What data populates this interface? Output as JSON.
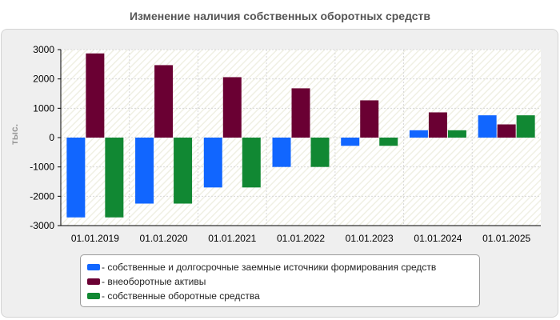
{
  "chart_data": {
    "type": "bar",
    "title": "Изменение наличия собственных оборотных средств",
    "ylabel": "тыс.",
    "xlabel": "",
    "ylim": [
      -3000,
      3000
    ],
    "yticks": [
      3000,
      2000,
      1000,
      0,
      -1000,
      -2000,
      -3000
    ],
    "grid": true,
    "legend_position": "bottom",
    "categories": [
      "01.01.2019",
      "01.01.2020",
      "01.01.2021",
      "01.01.2022",
      "01.01.2023",
      "01.01.2024",
      "01.01.2025"
    ],
    "series": [
      {
        "name": "собственные и долгосрочные заемные источники формирования средств",
        "color": "#1166ff",
        "values": [
          -2720,
          -2250,
          -1700,
          -1000,
          -280,
          250,
          760
        ]
      },
      {
        "name": "внеоборотные активы",
        "color": "#6a0033",
        "values": [
          2870,
          2470,
          2060,
          1680,
          1270,
          860,
          450
        ]
      },
      {
        "name": "собственные оборотные средства",
        "color": "#118833",
        "values": [
          -2720,
          -2250,
          -1700,
          -1000,
          -280,
          250,
          760
        ]
      }
    ]
  }
}
